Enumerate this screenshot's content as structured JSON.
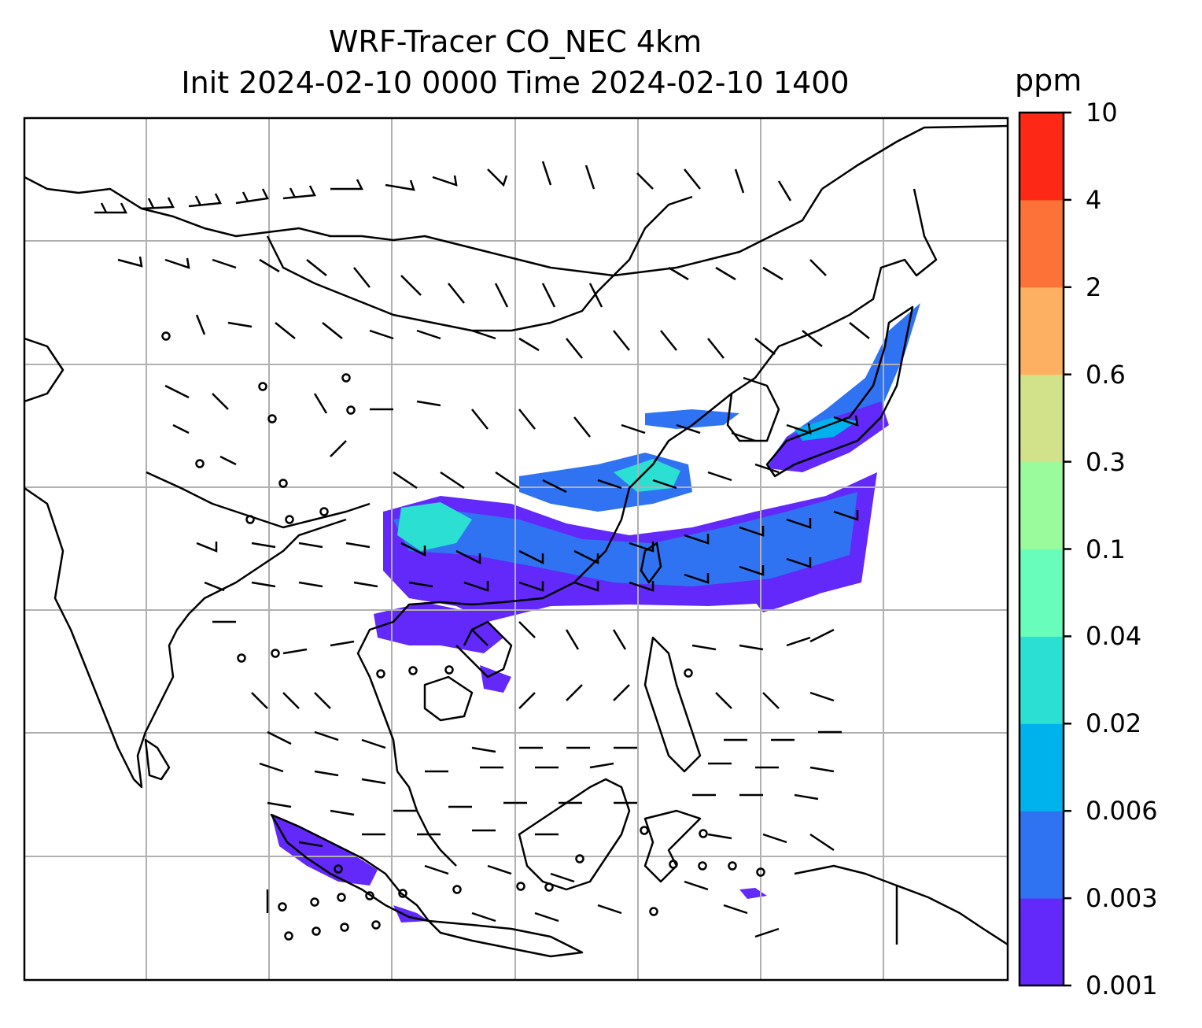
{
  "title": {
    "line1": "WRF-Tracer CO_NEC 4km",
    "line2": "Init 2024-02-10 0000 Time 2024-02-10 1400"
  },
  "colorbar": {
    "unit": "ppm",
    "ticks": [
      "0.001",
      "0.003",
      "0.006",
      "0.02",
      "0.04",
      "0.1",
      "0.3",
      "0.6",
      "2",
      "4",
      "10"
    ],
    "colors": [
      "#6229fa",
      "#3073f2",
      "#00b2ec",
      "#2bdfd3",
      "#69fdbb",
      "#9afb9d",
      "#d1e28a",
      "#fdb061",
      "#fd7237",
      "#fe2816"
    ]
  },
  "map": {
    "gridline_color": "#b0b0b0",
    "coastline_color": "#000000",
    "barb_color": "#000000"
  }
}
